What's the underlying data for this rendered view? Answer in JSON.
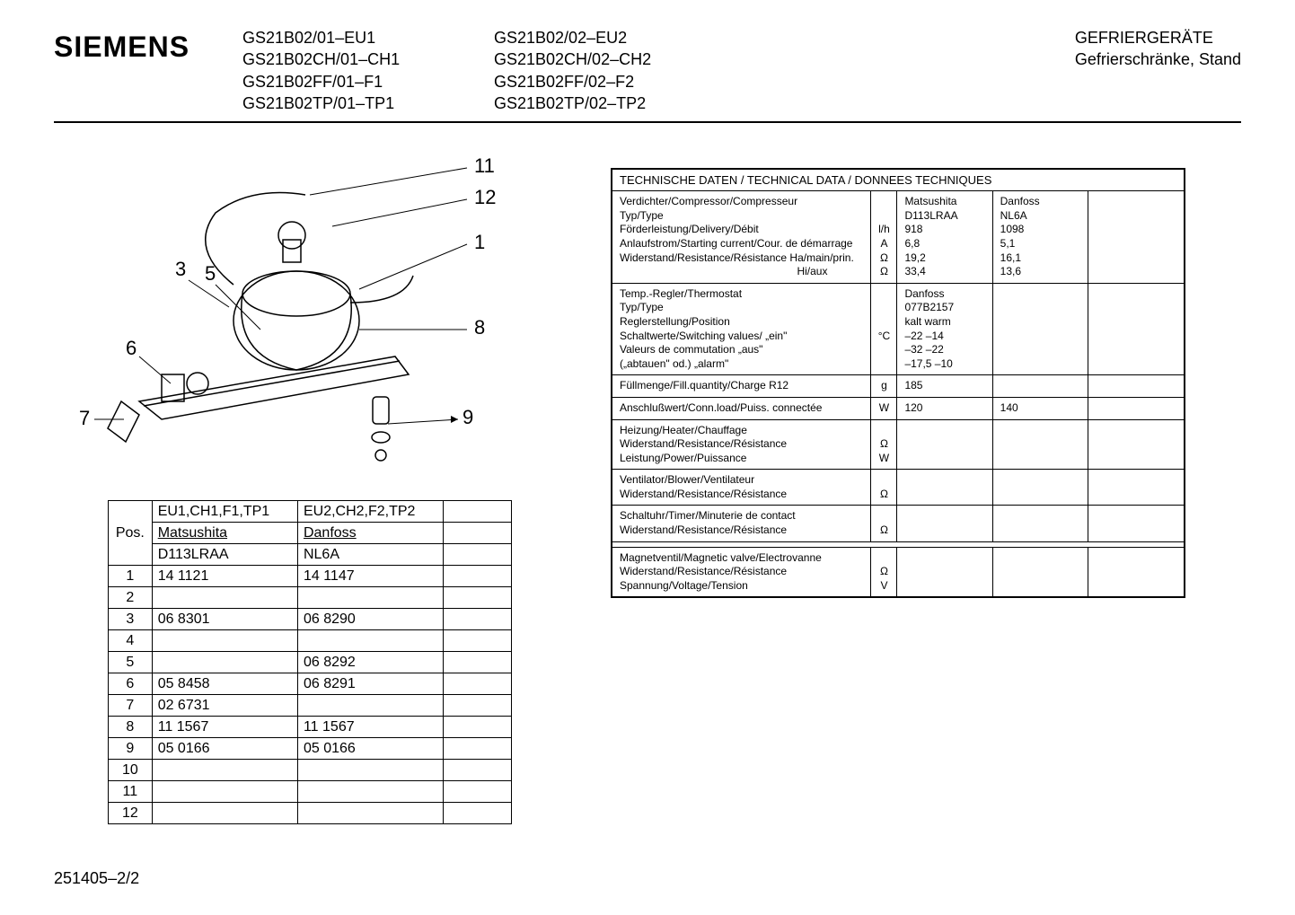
{
  "header": {
    "brand": "SIEMENS",
    "models_col1": [
      "GS21B02/01–EU1",
      "GS21B02CH/01–CH1",
      "GS21B02FF/01–F1",
      "GS21B02TP/01–TP1"
    ],
    "models_col2": [
      "GS21B02/02–EU2",
      "GS21B02CH/02–CH2",
      "GS21B02FF/02–F2",
      "GS21B02TP/02–TP2"
    ],
    "right1": "GEFRIERGERÄTE",
    "right2": "Gefrierschränke, Stand"
  },
  "diagram": {
    "callouts": [
      "1",
      "3",
      "5",
      "6",
      "7",
      "8",
      "9",
      "11",
      "12"
    ]
  },
  "parts": {
    "header": [
      "EU1,CH1,F1,TP1",
      "EU2,CH2,F2,TP2",
      ""
    ],
    "sub1": [
      "Matsushita",
      "Danfoss",
      ""
    ],
    "sub2": [
      "D113LRAA",
      "NL6A",
      ""
    ],
    "pos_label": "Pos.",
    "rows": [
      {
        "pos": "1",
        "c1": "14 1121",
        "c2": "14 1147",
        "c3": ""
      },
      {
        "pos": "2",
        "c1": "",
        "c2": "",
        "c3": ""
      },
      {
        "pos": "3",
        "c1": "06 8301",
        "c2": "06 8290",
        "c3": ""
      },
      {
        "pos": "4",
        "c1": "",
        "c2": "",
        "c3": ""
      },
      {
        "pos": "5",
        "c1": "",
        "c2": "06 8292",
        "c3": ""
      },
      {
        "pos": "6",
        "c1": "05 8458",
        "c2": "06 8291",
        "c3": ""
      },
      {
        "pos": "7",
        "c1": "02 6731",
        "c2": "",
        "c3": ""
      },
      {
        "pos": "8",
        "c1": "11 1567",
        "c2": "11 1567",
        "c3": ""
      },
      {
        "pos": "9",
        "c1": "05 0166",
        "c2": "05 0166",
        "c3": ""
      },
      {
        "pos": "10",
        "c1": "",
        "c2": "",
        "c3": ""
      },
      {
        "pos": "11",
        "c1": "",
        "c2": "",
        "c3": ""
      },
      {
        "pos": "12",
        "c1": "",
        "c2": "",
        "c3": ""
      }
    ]
  },
  "tech": {
    "title": "TECHNISCHE DATEN / TECHNICAL DATA / DONNEES TECHNIQUES",
    "compressor": {
      "l1": "Verdichter/Compressor/Compresseur",
      "l2": "Typ/Type",
      "l3": "Förderleistung/Delivery/Débit",
      "l4": "Anlaufstrom/Starting current/Cour. de démarrage",
      "l5": "Widerstand/Resistance/Résistance   Ha/main/prin.",
      "l6": "Hi/aux",
      "units": [
        "",
        "",
        "l/h",
        "A",
        "Ω",
        "Ω"
      ],
      "v1": [
        "Matsushita",
        "D113LRAA",
        "918",
        "6,8",
        "19,2",
        "33,4"
      ],
      "v2": [
        "Danfoss",
        "NL6A",
        "1098",
        "5,1",
        "16,1",
        "13,6"
      ]
    },
    "thermostat": {
      "l1": "Temp.-Regler/Thermostat",
      "l2": "Typ/Type",
      "l3": "Reglerstellung/Position",
      "l4": "Schaltwerte/Switching values/        „ein\"",
      "l5": "Valeurs de commutation                „aus\"",
      "l6": "(„abtauen\" od.)       „alarm\"",
      "unit": "°C",
      "v1": [
        "Danfoss",
        "077B2157",
        "kalt    warm",
        "–22    –14",
        "–32    –22",
        "–17,5  –10"
      ]
    },
    "fill": {
      "label": "Füllmenge/Fill.quantity/Charge       R12",
      "unit": "g",
      "v1": "185"
    },
    "load": {
      "label": "Anschlußwert/Conn.load/Puiss. connectée",
      "unit": "W",
      "v1": "120",
      "v2": "140"
    },
    "heater": {
      "l1": "Heizung/Heater/Chauffage",
      "l2": "Widerstand/Resistance/Résistance",
      "l3": "Leistung/Power/Puissance",
      "units": [
        "",
        "Ω",
        "W"
      ]
    },
    "blower": {
      "l1": "Ventilator/Blower/Ventilateur",
      "l2": "Widerstand/Resistance/Résistance",
      "unit": "Ω"
    },
    "timer": {
      "l1": "Schaltuhr/Timer/Minuterie de contact",
      "l2": "Widerstand/Resistance/Résistance",
      "unit": "Ω"
    },
    "valve": {
      "l1": "Magnetventil/Magnetic valve/Electrovanne",
      "l2": "Widerstand/Resistance/Résistance",
      "l3": "Spannung/Voltage/Tension",
      "units": [
        "",
        "Ω",
        "V"
      ]
    }
  },
  "footer": "251405–2/2",
  "style": {
    "colors": {
      "bg": "#ffffff",
      "text": "#000000",
      "border": "#000000"
    },
    "fonts": {
      "body": "Arial",
      "brand_weight": 900,
      "body_size": 16,
      "tech_size": 12
    }
  }
}
